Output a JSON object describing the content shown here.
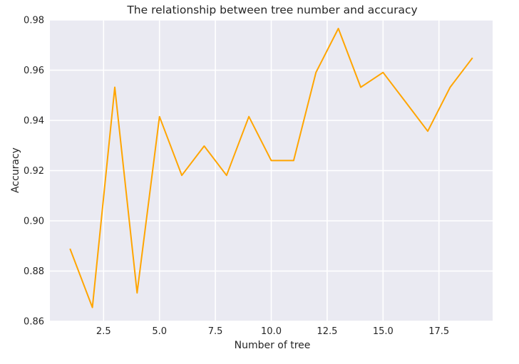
{
  "chart_data": {
    "type": "line",
    "title": "The relationship between tree number and accuracy",
    "xlabel": "Number of tree",
    "ylabel": "Accuracy",
    "xlim": [
      0.1,
      19.9
    ],
    "ylim": [
      0.86,
      0.98
    ],
    "xticks": [
      2.5,
      5.0,
      7.5,
      10.0,
      12.5,
      15.0,
      17.5
    ],
    "xtick_labels": [
      "2.5",
      "5.0",
      "7.5",
      "10.0",
      "12.5",
      "15.0",
      "17.5"
    ],
    "yticks": [
      0.86,
      0.88,
      0.9,
      0.92,
      0.94,
      0.96,
      0.98
    ],
    "ytick_labels": [
      "0.86",
      "0.88",
      "0.90",
      "0.92",
      "0.94",
      "0.96",
      "0.98"
    ],
    "grid": true,
    "background_color": "#eaeaf2",
    "series": [
      {
        "color": "#ffa500",
        "x": [
          1,
          2,
          3,
          4,
          5,
          6,
          7,
          8,
          9,
          10,
          11,
          12,
          13,
          14,
          15,
          16,
          17,
          18,
          19
        ],
        "y": [
          0.8889,
          0.8655,
          0.9532,
          0.8713,
          0.9415,
          0.9181,
          0.9298,
          0.9181,
          0.9415,
          0.924,
          0.924,
          0.9591,
          0.9766,
          0.9532,
          0.9591,
          0.9474,
          0.9357,
          0.9532,
          0.9649
        ]
      }
    ]
  }
}
